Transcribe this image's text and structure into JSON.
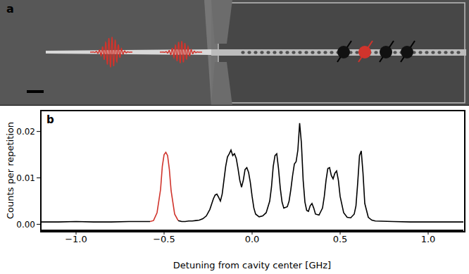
{
  "panel_a": {
    "label": "a"
  },
  "chart_data": {
    "type": "line",
    "title": "b",
    "x_label": "Detuning from cavity center [GHz]",
    "y_label": "Counts per repetition",
    "xlim": [
      -1.2,
      1.2
    ],
    "xticks": [
      {
        "value": -1.0,
        "label": "−1.0"
      },
      {
        "value": -0.5,
        "label": "−0.5"
      },
      {
        "value": 0.0,
        "label": "0.0"
      },
      {
        "value": 0.5,
        "label": "0.5"
      },
      {
        "value": 1.0,
        "label": "1.0"
      }
    ],
    "ylim": [
      -0.0013,
      0.0245
    ],
    "yticks": [
      {
        "value": 0.0,
        "label": "0.00"
      },
      {
        "value": 0.01,
        "label": "0.01"
      },
      {
        "value": 0.02,
        "label": "0.02"
      }
    ],
    "grid": false,
    "series": [
      {
        "color": "#000000",
        "x": [
          -1.2,
          -1.1,
          -1.0,
          -0.9,
          -0.8,
          -0.7,
          -0.6,
          -0.58,
          -0.5,
          -0.42,
          -0.4,
          -0.38,
          -0.36,
          -0.34,
          -0.32,
          -0.3,
          -0.28,
          -0.26,
          -0.24,
          -0.22,
          -0.21,
          -0.2,
          -0.19,
          -0.18,
          -0.17,
          -0.16,
          -0.15,
          -0.14,
          -0.13,
          -0.12,
          -0.11,
          -0.1,
          -0.09,
          -0.08,
          -0.07,
          -0.06,
          -0.05,
          -0.04,
          -0.03,
          -0.02,
          -0.01,
          0.0,
          0.01,
          0.02,
          0.04,
          0.06,
          0.08,
          0.1,
          0.11,
          0.12,
          0.13,
          0.14,
          0.15,
          0.16,
          0.17,
          0.18,
          0.2,
          0.21,
          0.22,
          0.23,
          0.24,
          0.25,
          0.26,
          0.27,
          0.28,
          0.29,
          0.3,
          0.31,
          0.32,
          0.33,
          0.34,
          0.35,
          0.36,
          0.38,
          0.4,
          0.41,
          0.42,
          0.43,
          0.44,
          0.45,
          0.46,
          0.47,
          0.48,
          0.49,
          0.5,
          0.52,
          0.54,
          0.56,
          0.58,
          0.59,
          0.6,
          0.61,
          0.62,
          0.63,
          0.64,
          0.66,
          0.68,
          0.7,
          0.8,
          0.9,
          1.0,
          1.1,
          1.2
        ],
        "values": [
          0.0005,
          0.0005,
          0.0006,
          0.0005,
          0.0005,
          0.0006,
          0.0006,
          0.0006,
          null,
          0.0008,
          0.0006,
          0.0006,
          0.0007,
          0.0007,
          0.0008,
          0.0009,
          0.0012,
          0.0018,
          0.0032,
          0.0055,
          0.0063,
          0.0065,
          0.0058,
          0.005,
          0.0065,
          0.0095,
          0.0125,
          0.0145,
          0.0152,
          0.016,
          0.0148,
          0.0152,
          0.0142,
          0.012,
          0.0095,
          0.008,
          0.0095,
          0.0118,
          0.0122,
          0.0112,
          0.009,
          0.006,
          0.0035,
          0.0022,
          0.0016,
          0.0018,
          0.0025,
          0.005,
          0.008,
          0.0125,
          0.0148,
          0.0152,
          0.012,
          0.0078,
          0.0048,
          0.0035,
          0.0038,
          0.005,
          0.0075,
          0.0105,
          0.013,
          0.0135,
          0.016,
          0.0218,
          0.0175,
          0.0095,
          0.0048,
          0.003,
          0.0028,
          0.004,
          0.0045,
          0.0035,
          0.0022,
          0.002,
          0.0035,
          0.006,
          0.0095,
          0.012,
          0.0122,
          0.0105,
          0.0098,
          0.011,
          0.0115,
          0.0095,
          0.006,
          0.0025,
          0.0015,
          0.0014,
          0.0022,
          0.004,
          0.009,
          0.0148,
          0.0158,
          0.011,
          0.0045,
          0.0015,
          0.0009,
          0.0007,
          0.0006,
          0.0005,
          0.0005,
          0.0005,
          0.0005
        ]
      },
      {
        "color": "#d0342c",
        "x": [
          -0.58,
          -0.56,
          -0.54,
          -0.52,
          -0.51,
          -0.5,
          -0.49,
          -0.48,
          -0.47,
          -0.46,
          -0.44,
          -0.42
        ],
        "values": [
          0.0006,
          0.0008,
          0.0025,
          0.0075,
          0.0125,
          0.015,
          0.0155,
          0.0148,
          0.0118,
          0.0072,
          0.0022,
          0.0008
        ]
      }
    ]
  }
}
